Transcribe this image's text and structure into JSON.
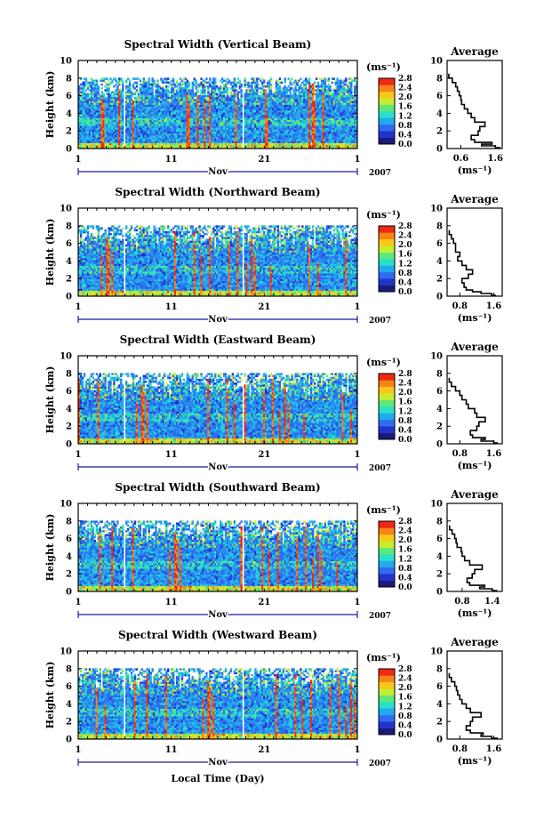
{
  "figure": {
    "xlabel": "Local Time (Day)",
    "month": "Nov",
    "year": "2007"
  },
  "colorbar": {
    "unit": "(ms⁻¹)",
    "ticks": [
      "0.0",
      "0.4",
      "0.8",
      "1.2",
      "1.6",
      "2.0",
      "2.4",
      "2.8"
    ],
    "colors": [
      "#1a1a7a",
      "#2233cc",
      "#2f6cf0",
      "#22aaee",
      "#29e0c8",
      "#5fe87a",
      "#c8ec2e",
      "#f8c818",
      "#f88418",
      "#ee2a12"
    ]
  },
  "chart_data": [
    {
      "type": "heatmap",
      "title": "Spectral Width (Vertical Beam)",
      "ylabel": "Height (km)",
      "ylim": [
        0,
        10
      ],
      "yticks": [
        "0",
        "2",
        "4",
        "6",
        "8",
        "10"
      ],
      "xlim": [
        1,
        31
      ],
      "xticks": [
        "1",
        "11",
        "21",
        "1"
      ],
      "colorbar": {
        "unit": "(ms⁻¹)",
        "range": [
          0.0,
          2.8
        ],
        "ticks": [
          "0.0",
          "0.4",
          "0.8",
          "1.2",
          "1.6",
          "2.0",
          "2.4",
          "2.8"
        ]
      },
      "average": {
        "title": "Average",
        "xlabel": "(ms⁻¹)",
        "xticks": [
          "0.6",
          "1.6"
        ],
        "xlim": [
          0.2,
          1.8
        ],
        "ylim": [
          0,
          10
        ],
        "yticks": [
          "0",
          "2",
          "4",
          "6",
          "8",
          "10"
        ],
        "profile": {
          "height": [
            0.1,
            0.3,
            0.5,
            0.7,
            1.0,
            1.5,
            2.0,
            2.5,
            3.0,
            3.5,
            4.0,
            4.5,
            5.0,
            5.5,
            6.0,
            6.5,
            7.0,
            7.5,
            8.0,
            8.5
          ],
          "value": [
            1.75,
            1.6,
            1.2,
            1.5,
            1.0,
            0.9,
            1.1,
            1.15,
            1.3,
            1.0,
            0.9,
            0.8,
            0.7,
            0.62,
            0.6,
            0.55,
            0.5,
            0.45,
            0.35,
            0.25
          ]
        }
      }
    },
    {
      "type": "heatmap",
      "title": "Spectral Width (Northward Beam)",
      "ylabel": "Height (km)",
      "ylim": [
        0,
        10
      ],
      "yticks": [
        "0",
        "2",
        "4",
        "6",
        "8",
        "10"
      ],
      "xlim": [
        1,
        31
      ],
      "xticks": [
        "1",
        "11",
        "21",
        "1"
      ],
      "colorbar": {
        "unit": "(ms⁻¹)",
        "range": [
          0.0,
          2.8
        ],
        "ticks": [
          "0.0",
          "0.4",
          "0.8",
          "1.2",
          "1.6",
          "2.0",
          "2.4",
          "2.8"
        ]
      },
      "average": {
        "title": "Average",
        "xlabel": "(ms⁻¹)",
        "xticks": [
          "0.8",
          "1.6"
        ],
        "xlim": [
          0.5,
          1.8
        ],
        "ylim": [
          0,
          10
        ],
        "yticks": [
          "0",
          "2",
          "4",
          "6",
          "8",
          "10"
        ],
        "profile": {
          "height": [
            0.1,
            0.3,
            0.5,
            0.7,
            1.0,
            1.5,
            2.0,
            2.5,
            3.0,
            3.5,
            4.0,
            4.5,
            5.0,
            5.5,
            6.0,
            6.5,
            7.0,
            7.5
          ],
          "value": [
            1.65,
            1.55,
            1.3,
            1.1,
            0.95,
            0.9,
            0.85,
            1.0,
            1.1,
            0.95,
            0.85,
            0.75,
            0.8,
            0.7,
            0.7,
            0.65,
            0.6,
            0.55
          ]
        }
      }
    },
    {
      "type": "heatmap",
      "title": "Spectral Width (Eastward Beam)",
      "ylabel": "Height (km)",
      "ylim": [
        0,
        10
      ],
      "yticks": [
        "0",
        "2",
        "4",
        "6",
        "8",
        "10"
      ],
      "xlim": [
        1,
        31
      ],
      "xticks": [
        "1",
        "11",
        "21",
        "1"
      ],
      "colorbar": {
        "unit": "(ms⁻¹)",
        "range": [
          0.0,
          2.8
        ],
        "ticks": [
          "0.0",
          "0.4",
          "0.8",
          "1.2",
          "1.6",
          "2.0",
          "2.4",
          "2.8"
        ]
      },
      "average": {
        "title": "Average",
        "xlabel": "(ms⁻¹)",
        "xticks": [
          "0.8",
          "1.6"
        ],
        "xlim": [
          0.5,
          1.8
        ],
        "ylim": [
          0,
          10
        ],
        "yticks": [
          "0",
          "2",
          "4",
          "6",
          "8",
          "10"
        ],
        "profile": {
          "height": [
            0.1,
            0.3,
            0.5,
            0.7,
            1.0,
            1.5,
            2.0,
            2.5,
            3.0,
            3.5,
            4.0,
            4.5,
            5.0,
            5.5,
            6.0,
            6.5,
            7.0,
            7.5
          ],
          "value": [
            1.7,
            1.6,
            1.3,
            1.4,
            1.1,
            1.05,
            1.2,
            1.25,
            1.4,
            1.2,
            1.15,
            1.0,
            0.95,
            0.85,
            0.8,
            0.7,
            0.6,
            0.55
          ]
        }
      }
    },
    {
      "type": "heatmap",
      "title": "Spectral Width (Southward Beam)",
      "ylabel": "Height (km)",
      "ylim": [
        0,
        10
      ],
      "yticks": [
        "0",
        "2",
        "4",
        "6",
        "8",
        "10"
      ],
      "xlim": [
        1,
        31
      ],
      "xticks": [
        "1",
        "11",
        "21",
        "1"
      ],
      "colorbar": {
        "unit": "(ms⁻¹)",
        "range": [
          0.0,
          2.8
        ],
        "ticks": [
          "0.0",
          "0.4",
          "0.8",
          "1.2",
          "1.6",
          "2.0",
          "2.4",
          "2.8"
        ]
      },
      "average": {
        "title": "Average",
        "xlabel": "(ms⁻¹)",
        "xticks": [
          "0.8",
          "1.4"
        ],
        "xlim": [
          0.5,
          1.6
        ],
        "ylim": [
          0,
          10
        ],
        "yticks": [
          "0",
          "2",
          "4",
          "6",
          "8",
          "10"
        ],
        "profile": {
          "height": [
            0.1,
            0.3,
            0.5,
            0.7,
            1.0,
            1.5,
            2.0,
            2.5,
            3.0,
            3.5,
            4.0,
            4.5,
            5.0,
            5.5,
            6.0,
            6.5,
            7.0,
            7.5
          ],
          "value": [
            1.5,
            1.4,
            1.15,
            1.25,
            0.95,
            0.9,
            1.0,
            1.05,
            1.2,
            0.95,
            0.85,
            0.8,
            0.78,
            0.7,
            0.68,
            0.65,
            0.6,
            0.55
          ]
        }
      }
    },
    {
      "type": "heatmap",
      "title": "Spectral Width (Westward Beam)",
      "ylabel": "Height (km)",
      "ylim": [
        0,
        10
      ],
      "yticks": [
        "0",
        "2",
        "4",
        "6",
        "8",
        "10"
      ],
      "xlim": [
        1,
        31
      ],
      "xticks": [
        "1",
        "11",
        "21",
        "1"
      ],
      "colorbar": {
        "unit": "(ms⁻¹)",
        "range": [
          0.0,
          2.8
        ],
        "ticks": [
          "0.0",
          "0.4",
          "0.8",
          "1.2",
          "1.6",
          "2.0",
          "2.4",
          "2.8"
        ]
      },
      "average": {
        "title": "Average",
        "xlabel": "(ms⁻¹)",
        "xticks": [
          "0.8",
          "1.6"
        ],
        "xlim": [
          0.5,
          1.8
        ],
        "ylim": [
          0,
          10
        ],
        "yticks": [
          "0",
          "2",
          "4",
          "6",
          "8",
          "10"
        ],
        "profile": {
          "height": [
            0.1,
            0.3,
            0.5,
            0.7,
            1.0,
            1.5,
            2.0,
            2.5,
            3.0,
            3.5,
            4.0,
            4.5,
            5.0,
            5.5,
            6.0,
            6.5,
            7.0,
            7.5
          ],
          "value": [
            1.7,
            1.55,
            1.3,
            1.35,
            1.05,
            0.95,
            1.05,
            1.1,
            1.3,
            1.05,
            0.95,
            0.85,
            0.8,
            0.75,
            0.72,
            0.68,
            0.6,
            0.55
          ]
        }
      }
    }
  ]
}
